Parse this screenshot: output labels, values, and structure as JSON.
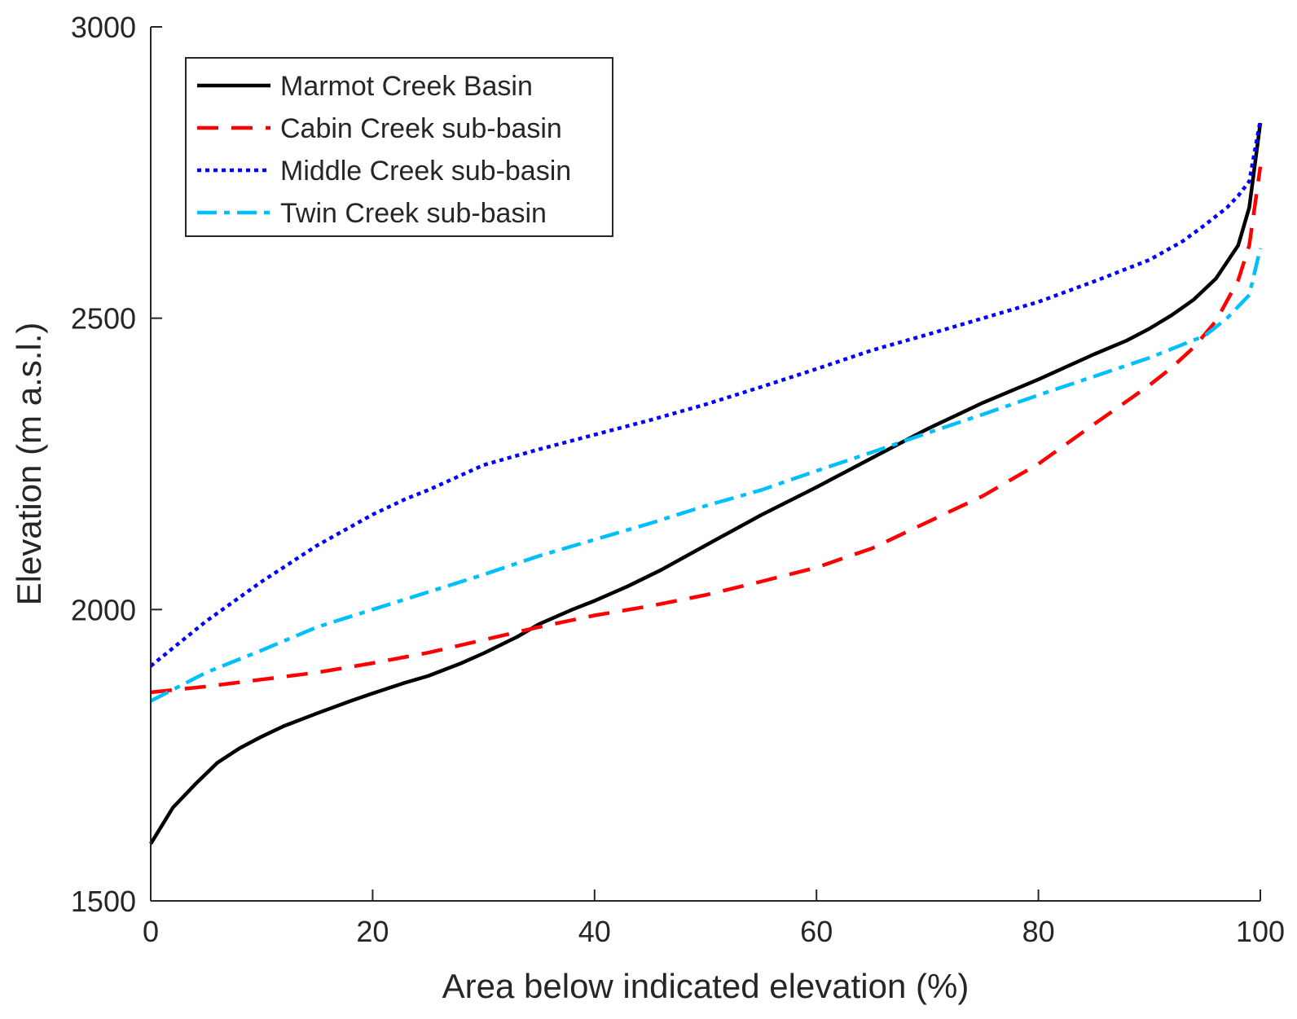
{
  "chart_data": {
    "type": "line",
    "title": "",
    "xlabel": "Area below indicated elevation (%)",
    "ylabel": "Elevation (m a.s.l.)",
    "xlim": [
      0,
      100
    ],
    "ylim": [
      1500,
      3000
    ],
    "xticks": [
      0,
      20,
      40,
      60,
      80,
      100
    ],
    "yticks": [
      1500,
      2000,
      2500,
      3000
    ],
    "grid": false,
    "legend_position": "top-left",
    "series": [
      {
        "name": "Marmot Creek Basin",
        "color": "#000000",
        "style": "solid",
        "x": [
          0,
          2,
          4,
          6,
          8,
          10,
          12,
          15,
          18,
          20,
          23,
          25,
          28,
          30,
          33,
          35,
          38,
          40,
          43,
          46,
          50,
          55,
          60,
          65,
          70,
          75,
          80,
          85,
          88,
          90,
          92,
          94,
          96,
          98,
          99,
          100
        ],
        "y": [
          1598,
          1660,
          1700,
          1737,
          1762,
          1782,
          1800,
          1822,
          1843,
          1856,
          1875,
          1886,
          1908,
          1925,
          1953,
          1975,
          2000,
          2015,
          2040,
          2068,
          2110,
          2162,
          2210,
          2260,
          2310,
          2355,
          2395,
          2438,
          2462,
          2482,
          2505,
          2532,
          2568,
          2625,
          2690,
          2835
        ]
      },
      {
        "name": "Cabin Creek sub-basin",
        "color": "#ff0000",
        "style": "dashed",
        "x": [
          0,
          5,
          10,
          15,
          20,
          25,
          30,
          35,
          40,
          45,
          50,
          55,
          60,
          63,
          65,
          70,
          75,
          80,
          85,
          88,
          90,
          92,
          94,
          96,
          98,
          99,
          100
        ],
        "y": [
          1858,
          1868,
          1880,
          1892,
          1908,
          1926,
          1948,
          1970,
          1990,
          2006,
          2025,
          2048,
          2072,
          2092,
          2105,
          2150,
          2195,
          2250,
          2318,
          2358,
          2385,
          2415,
          2450,
          2495,
          2565,
          2625,
          2760
        ]
      },
      {
        "name": "Middle Creek sub-basin",
        "color": "#0000ff",
        "style": "dotted",
        "x": [
          0,
          5,
          10,
          15,
          20,
          23,
          25,
          30,
          35,
          40,
          45,
          50,
          55,
          60,
          65,
          70,
          75,
          80,
          85,
          90,
          93,
          95,
          97,
          98,
          99,
          100
        ],
        "y": [
          1903,
          1980,
          2048,
          2110,
          2163,
          2190,
          2205,
          2248,
          2275,
          2300,
          2325,
          2352,
          2382,
          2413,
          2445,
          2472,
          2500,
          2528,
          2563,
          2600,
          2632,
          2660,
          2690,
          2710,
          2735,
          2840
        ]
      },
      {
        "name": "Twin Creek sub-basin",
        "color": "#00bfff",
        "style": "dash-dot",
        "x": [
          0,
          5,
          10,
          15,
          20,
          25,
          30,
          35,
          40,
          45,
          50,
          55,
          60,
          65,
          70,
          75,
          80,
          85,
          90,
          95,
          97,
          99,
          100
        ],
        "y": [
          1843,
          1892,
          1930,
          1970,
          2000,
          2030,
          2060,
          2092,
          2120,
          2148,
          2178,
          2205,
          2238,
          2270,
          2303,
          2335,
          2368,
          2400,
          2432,
          2470,
          2500,
          2540,
          2620
        ]
      }
    ]
  }
}
